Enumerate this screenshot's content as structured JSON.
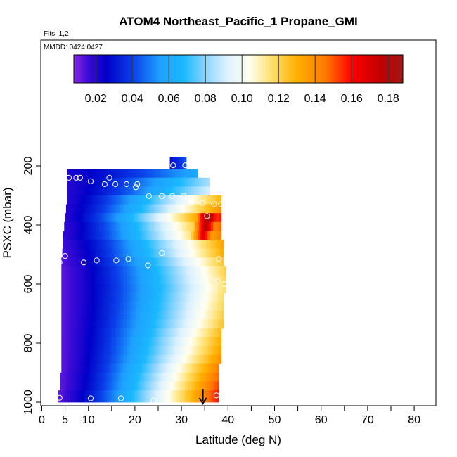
{
  "chart_data": {
    "type": "heatmap",
    "title": "ATOM4 Northeast_Pacific_1 Propane_GMI",
    "flights_note": "Flts: 1,2",
    "mmdd_note": "MMDD: 0424,0427",
    "xlabel": "Latitude (deg N)",
    "ylabel": "PSXC (mbar)",
    "xlim": [
      0,
      85
    ],
    "ylim": [
      1000,
      200
    ],
    "x_ticks_major": [
      0,
      10,
      20,
      30,
      40,
      50,
      60,
      70,
      80
    ],
    "x_ticks_extra": [
      5
    ],
    "x_ticks_minor": [
      15,
      25,
      35,
      45,
      55,
      65,
      75,
      85
    ],
    "x_tick_labels": [
      "0",
      "5",
      "10",
      "20",
      "30",
      "40",
      "50",
      "60",
      "70",
      "80"
    ],
    "y_ticks": [
      200,
      400,
      600,
      800,
      1000
    ],
    "y_tick_labels": [
      "200",
      "400",
      "600",
      "800",
      "1000"
    ],
    "colorbar": {
      "min": 0.008,
      "max": 0.188,
      "ticks": [
        0.02,
        0.04,
        0.06,
        0.08,
        0.1,
        0.12,
        0.14,
        0.16,
        0.18
      ],
      "tick_labels": [
        "0.02",
        "0.04",
        "0.06",
        "0.08",
        "0.10",
        "0.12",
        "0.14",
        "0.16",
        "0.18"
      ],
      "color_stops": [
        {
          "v": 0.008,
          "c": "#8a2be2"
        },
        {
          "v": 0.016,
          "c": "#3a0ad6"
        },
        {
          "v": 0.026,
          "c": "#0000c8"
        },
        {
          "v": 0.04,
          "c": "#0a3fe8"
        },
        {
          "v": 0.055,
          "c": "#1ea0ff"
        },
        {
          "v": 0.068,
          "c": "#1ab8ff"
        },
        {
          "v": 0.08,
          "c": "#8ad4ff"
        },
        {
          "v": 0.092,
          "c": "#dff2ff"
        },
        {
          "v": 0.104,
          "c": "#fffff0"
        },
        {
          "v": 0.116,
          "c": "#ffe070"
        },
        {
          "v": 0.13,
          "c": "#ffb000"
        },
        {
          "v": 0.146,
          "c": "#ff7800"
        },
        {
          "v": 0.16,
          "c": "#ff0000"
        },
        {
          "v": 0.176,
          "c": "#c00000"
        },
        {
          "v": 0.188,
          "c": "#a01818"
        }
      ]
    },
    "profile_rows": [
      {
        "p_top": 170,
        "p_bot": 210,
        "lat_start": 27.5,
        "lat_end": 31.0,
        "v_start": 0.03,
        "v_end": 0.045,
        "v_peak": null,
        "lat_peak": null
      },
      {
        "p_top": 210,
        "p_bot": 240,
        "lat_start": 5.5,
        "lat_end": 33.5,
        "v_start": 0.022,
        "v_end": 0.06,
        "v_peak": null,
        "lat_peak": null
      },
      {
        "p_top": 240,
        "p_bot": 270,
        "lat_start": 5.5,
        "lat_end": 36.0,
        "v_start": 0.02,
        "v_end": 0.085,
        "v_peak": null,
        "lat_peak": null
      },
      {
        "p_top": 270,
        "p_bot": 300,
        "lat_start": 5.5,
        "lat_end": 36.0,
        "v_start": 0.02,
        "v_end": 0.092,
        "v_peak": null,
        "lat_peak": null
      },
      {
        "p_top": 300,
        "p_bot": 330,
        "lat_start": 5.5,
        "lat_end": 38.5,
        "v_start": 0.02,
        "v_end": 0.13,
        "v_peak": null,
        "lat_peak": null
      },
      {
        "p_top": 330,
        "p_bot": 360,
        "lat_start": 5.2,
        "lat_end": 38.5,
        "v_start": 0.02,
        "v_end": 0.14,
        "v_peak": null,
        "lat_peak": null
      },
      {
        "p_top": 360,
        "p_bot": 390,
        "lat_start": 5.0,
        "lat_end": 38.5,
        "v_start": 0.02,
        "v_end": 0.16,
        "v_peak": 0.188,
        "lat_peak": 35.5
      },
      {
        "p_top": 390,
        "p_bot": 420,
        "lat_start": 4.8,
        "lat_end": 38.5,
        "v_start": 0.018,
        "v_end": 0.15,
        "v_peak": 0.18,
        "lat_peak": 35.0
      },
      {
        "p_top": 420,
        "p_bot": 450,
        "lat_start": 4.6,
        "lat_end": 38.5,
        "v_start": 0.018,
        "v_end": 0.145,
        "v_peak": 0.17,
        "lat_peak": 34.5
      },
      {
        "p_top": 450,
        "p_bot": 480,
        "lat_start": 4.5,
        "lat_end": 39.0,
        "v_start": 0.016,
        "v_end": 0.135,
        "v_peak": null,
        "lat_peak": null
      },
      {
        "p_top": 480,
        "p_bot": 510,
        "lat_start": 4.4,
        "lat_end": 39.0,
        "v_start": 0.015,
        "v_end": 0.132,
        "v_peak": null,
        "lat_peak": null
      },
      {
        "p_top": 510,
        "p_bot": 540,
        "lat_start": 4.2,
        "lat_end": 39.0,
        "v_start": 0.014,
        "v_end": 0.125,
        "v_peak": null,
        "lat_peak": null
      },
      {
        "p_top": 540,
        "p_bot": 570,
        "lat_start": 4.2,
        "lat_end": 39.5,
        "v_start": 0.013,
        "v_end": 0.122,
        "v_peak": null,
        "lat_peak": null
      },
      {
        "p_top": 570,
        "p_bot": 600,
        "lat_start": 4.2,
        "lat_end": 39.5,
        "v_start": 0.013,
        "v_end": 0.12,
        "v_peak": null,
        "lat_peak": null
      },
      {
        "p_top": 600,
        "p_bot": 630,
        "lat_start": 4.2,
        "lat_end": 39.5,
        "v_start": 0.013,
        "v_end": 0.118,
        "v_peak": null,
        "lat_peak": null
      },
      {
        "p_top": 630,
        "p_bot": 660,
        "lat_start": 4.2,
        "lat_end": 39.0,
        "v_start": 0.013,
        "v_end": 0.118,
        "v_peak": null,
        "lat_peak": null
      },
      {
        "p_top": 660,
        "p_bot": 690,
        "lat_start": 4.2,
        "lat_end": 39.0,
        "v_start": 0.013,
        "v_end": 0.12,
        "v_peak": null,
        "lat_peak": null
      },
      {
        "p_top": 690,
        "p_bot": 720,
        "lat_start": 4.2,
        "lat_end": 39.0,
        "v_start": 0.013,
        "v_end": 0.122,
        "v_peak": null,
        "lat_peak": null
      },
      {
        "p_top": 720,
        "p_bot": 750,
        "lat_start": 4.2,
        "lat_end": 39.0,
        "v_start": 0.013,
        "v_end": 0.125,
        "v_peak": null,
        "lat_peak": null
      },
      {
        "p_top": 750,
        "p_bot": 780,
        "lat_start": 4.2,
        "lat_end": 38.5,
        "v_start": 0.013,
        "v_end": 0.128,
        "v_peak": null,
        "lat_peak": null
      },
      {
        "p_top": 780,
        "p_bot": 810,
        "lat_start": 4.2,
        "lat_end": 38.5,
        "v_start": 0.013,
        "v_end": 0.132,
        "v_peak": null,
        "lat_peak": null
      },
      {
        "p_top": 810,
        "p_bot": 840,
        "lat_start": 4.2,
        "lat_end": 38.5,
        "v_start": 0.013,
        "v_end": 0.135,
        "v_peak": null,
        "lat_peak": null
      },
      {
        "p_top": 840,
        "p_bot": 870,
        "lat_start": 4.2,
        "lat_end": 38.5,
        "v_start": 0.013,
        "v_end": 0.14,
        "v_peak": null,
        "lat_peak": null
      },
      {
        "p_top": 870,
        "p_bot": 900,
        "lat_start": 4.2,
        "lat_end": 38.0,
        "v_start": 0.013,
        "v_end": 0.145,
        "v_peak": null,
        "lat_peak": null
      },
      {
        "p_top": 900,
        "p_bot": 930,
        "lat_start": 4.0,
        "lat_end": 38.0,
        "v_start": 0.013,
        "v_end": 0.15,
        "v_peak": null,
        "lat_peak": null
      },
      {
        "p_top": 930,
        "p_bot": 960,
        "lat_start": 4.0,
        "lat_end": 38.0,
        "v_start": 0.013,
        "v_end": 0.155,
        "v_peak": null,
        "lat_peak": null
      },
      {
        "p_top": 960,
        "p_bot": 1000,
        "lat_start": 3.5,
        "lat_end": 38.0,
        "v_start": 0.013,
        "v_end": 0.16,
        "v_peak": null,
        "lat_peak": null
      }
    ],
    "sample_points": [
      {
        "lat": 28.2,
        "p": 198
      },
      {
        "lat": 30.8,
        "p": 198
      },
      {
        "lat": 5.8,
        "p": 240
      },
      {
        "lat": 7.4,
        "p": 240
      },
      {
        "lat": 8.2,
        "p": 240
      },
      {
        "lat": 14.5,
        "p": 240
      },
      {
        "lat": 10.5,
        "p": 252
      },
      {
        "lat": 13.5,
        "p": 262
      },
      {
        "lat": 15.8,
        "p": 262
      },
      {
        "lat": 18.2,
        "p": 262
      },
      {
        "lat": 20.5,
        "p": 262
      },
      {
        "lat": 20.2,
        "p": 272
      },
      {
        "lat": 23.0,
        "p": 302
      },
      {
        "lat": 25.8,
        "p": 302
      },
      {
        "lat": 28.0,
        "p": 302
      },
      {
        "lat": 30.5,
        "p": 302
      },
      {
        "lat": 32.0,
        "p": 325
      },
      {
        "lat": 34.5,
        "p": 325
      },
      {
        "lat": 37.0,
        "p": 330
      },
      {
        "lat": 38.5,
        "p": 330
      },
      {
        "lat": 35.5,
        "p": 370
      },
      {
        "lat": 5.0,
        "p": 505
      },
      {
        "lat": 3.8,
        "p": 527
      },
      {
        "lat": 9.0,
        "p": 527
      },
      {
        "lat": 11.8,
        "p": 520
      },
      {
        "lat": 16.0,
        "p": 520
      },
      {
        "lat": 18.6,
        "p": 515
      },
      {
        "lat": 22.8,
        "p": 537
      },
      {
        "lat": 25.8,
        "p": 495
      },
      {
        "lat": 38.0,
        "p": 515
      },
      {
        "lat": 37.8,
        "p": 590
      },
      {
        "lat": 39.2,
        "p": 600
      },
      {
        "lat": 3.8,
        "p": 985
      },
      {
        "lat": 10.5,
        "p": 987
      },
      {
        "lat": 17.0,
        "p": 987
      },
      {
        "lat": 24.0,
        "p": 995
      },
      {
        "lat": 37.5,
        "p": 977
      }
    ],
    "arrow_marker": {
      "lat": 34.6,
      "p_from": 955,
      "p_to": 1000
    }
  }
}
